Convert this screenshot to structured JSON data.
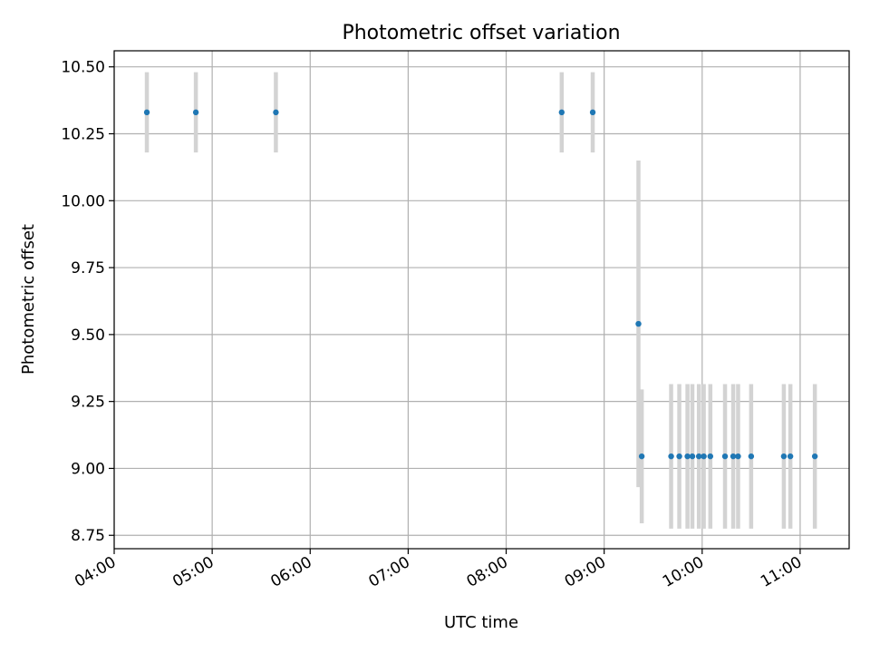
{
  "chart_data": {
    "type": "scatter",
    "title": "Photometric offset variation",
    "xlabel": "UTC time",
    "ylabel": "Photometric offset",
    "xlim": [
      "04:00",
      "11:30"
    ],
    "ylim": [
      8.7,
      10.56
    ],
    "grid": true,
    "x_ticks": [
      "04:00",
      "05:00",
      "06:00",
      "07:00",
      "08:00",
      "09:00",
      "10:00",
      "11:00"
    ],
    "y_ticks": [
      "8.75",
      "9.00",
      "9.25",
      "9.50",
      "9.75",
      "10.00",
      "10.25",
      "10.50"
    ],
    "point_color": "#1f77b4",
    "errorbar_color": "#d3d3d3",
    "points": [
      {
        "x": "04:20",
        "y": 10.33,
        "err": 0.15
      },
      {
        "x": "04:50",
        "y": 10.33,
        "err": 0.15
      },
      {
        "x": "05:39",
        "y": 10.33,
        "err": 0.15
      },
      {
        "x": "08:34",
        "y": 10.33,
        "err": 0.15
      },
      {
        "x": "08:53",
        "y": 10.33,
        "err": 0.15
      },
      {
        "x": "09:21",
        "y": 9.54,
        "err": 0.61
      },
      {
        "x": "09:23",
        "y": 9.045,
        "err": 0.25
      },
      {
        "x": "09:41",
        "y": 9.045,
        "err": 0.27
      },
      {
        "x": "09:46",
        "y": 9.045,
        "err": 0.27
      },
      {
        "x": "09:51",
        "y": 9.045,
        "err": 0.27
      },
      {
        "x": "09:54",
        "y": 9.045,
        "err": 0.27
      },
      {
        "x": "09:58",
        "y": 9.045,
        "err": 0.27
      },
      {
        "x": "10:01",
        "y": 9.045,
        "err": 0.27
      },
      {
        "x": "10:05",
        "y": 9.045,
        "err": 0.27
      },
      {
        "x": "10:14",
        "y": 9.045,
        "err": 0.27
      },
      {
        "x": "10:19",
        "y": 9.045,
        "err": 0.27
      },
      {
        "x": "10:22",
        "y": 9.045,
        "err": 0.27
      },
      {
        "x": "10:30",
        "y": 9.045,
        "err": 0.27
      },
      {
        "x": "10:50",
        "y": 9.045,
        "err": 0.27
      },
      {
        "x": "10:54",
        "y": 9.045,
        "err": 0.27
      },
      {
        "x": "11:09",
        "y": 9.045,
        "err": 0.27
      }
    ]
  }
}
